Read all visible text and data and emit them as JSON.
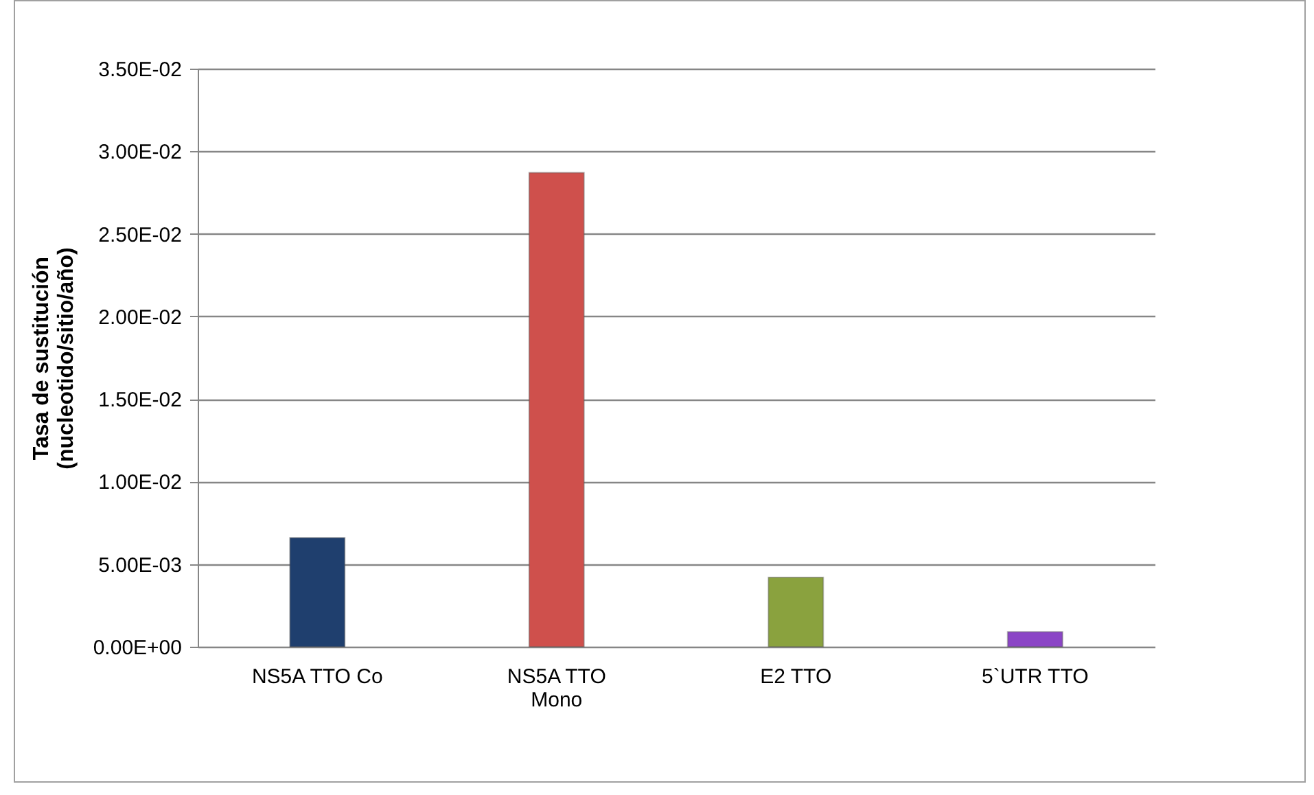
{
  "chart_data": {
    "type": "bar",
    "ylabel": "Tasa de sustitución\n(nucleotido/sitio/año)",
    "categories": [
      "NS5A TTO  Co",
      "NS5A TTO\nMono",
      "E2 TTO",
      "5`UTR TTO"
    ],
    "values": [
      0.0066,
      0.0287,
      0.0042,
      0.0009
    ],
    "colors": [
      "#1f3f6e",
      "#cf504c",
      "#8aa23e",
      "#8b45c6"
    ],
    "ylim": [
      0,
      0.035
    ],
    "yticks": [
      {
        "value": 0,
        "label": "0.00E+00"
      },
      {
        "value": 0.005,
        "label": "5.00E-03"
      },
      {
        "value": 0.01,
        "label": "1.00E-02"
      },
      {
        "value": 0.015,
        "label": "1.50E-02"
      },
      {
        "value": 0.02,
        "label": "2.00E-02"
      },
      {
        "value": 0.025,
        "label": "2.50E-02"
      },
      {
        "value": 0.03,
        "label": "3.00E-02"
      },
      {
        "value": 0.035,
        "label": "3.50E-02"
      }
    ],
    "grid": "y"
  }
}
